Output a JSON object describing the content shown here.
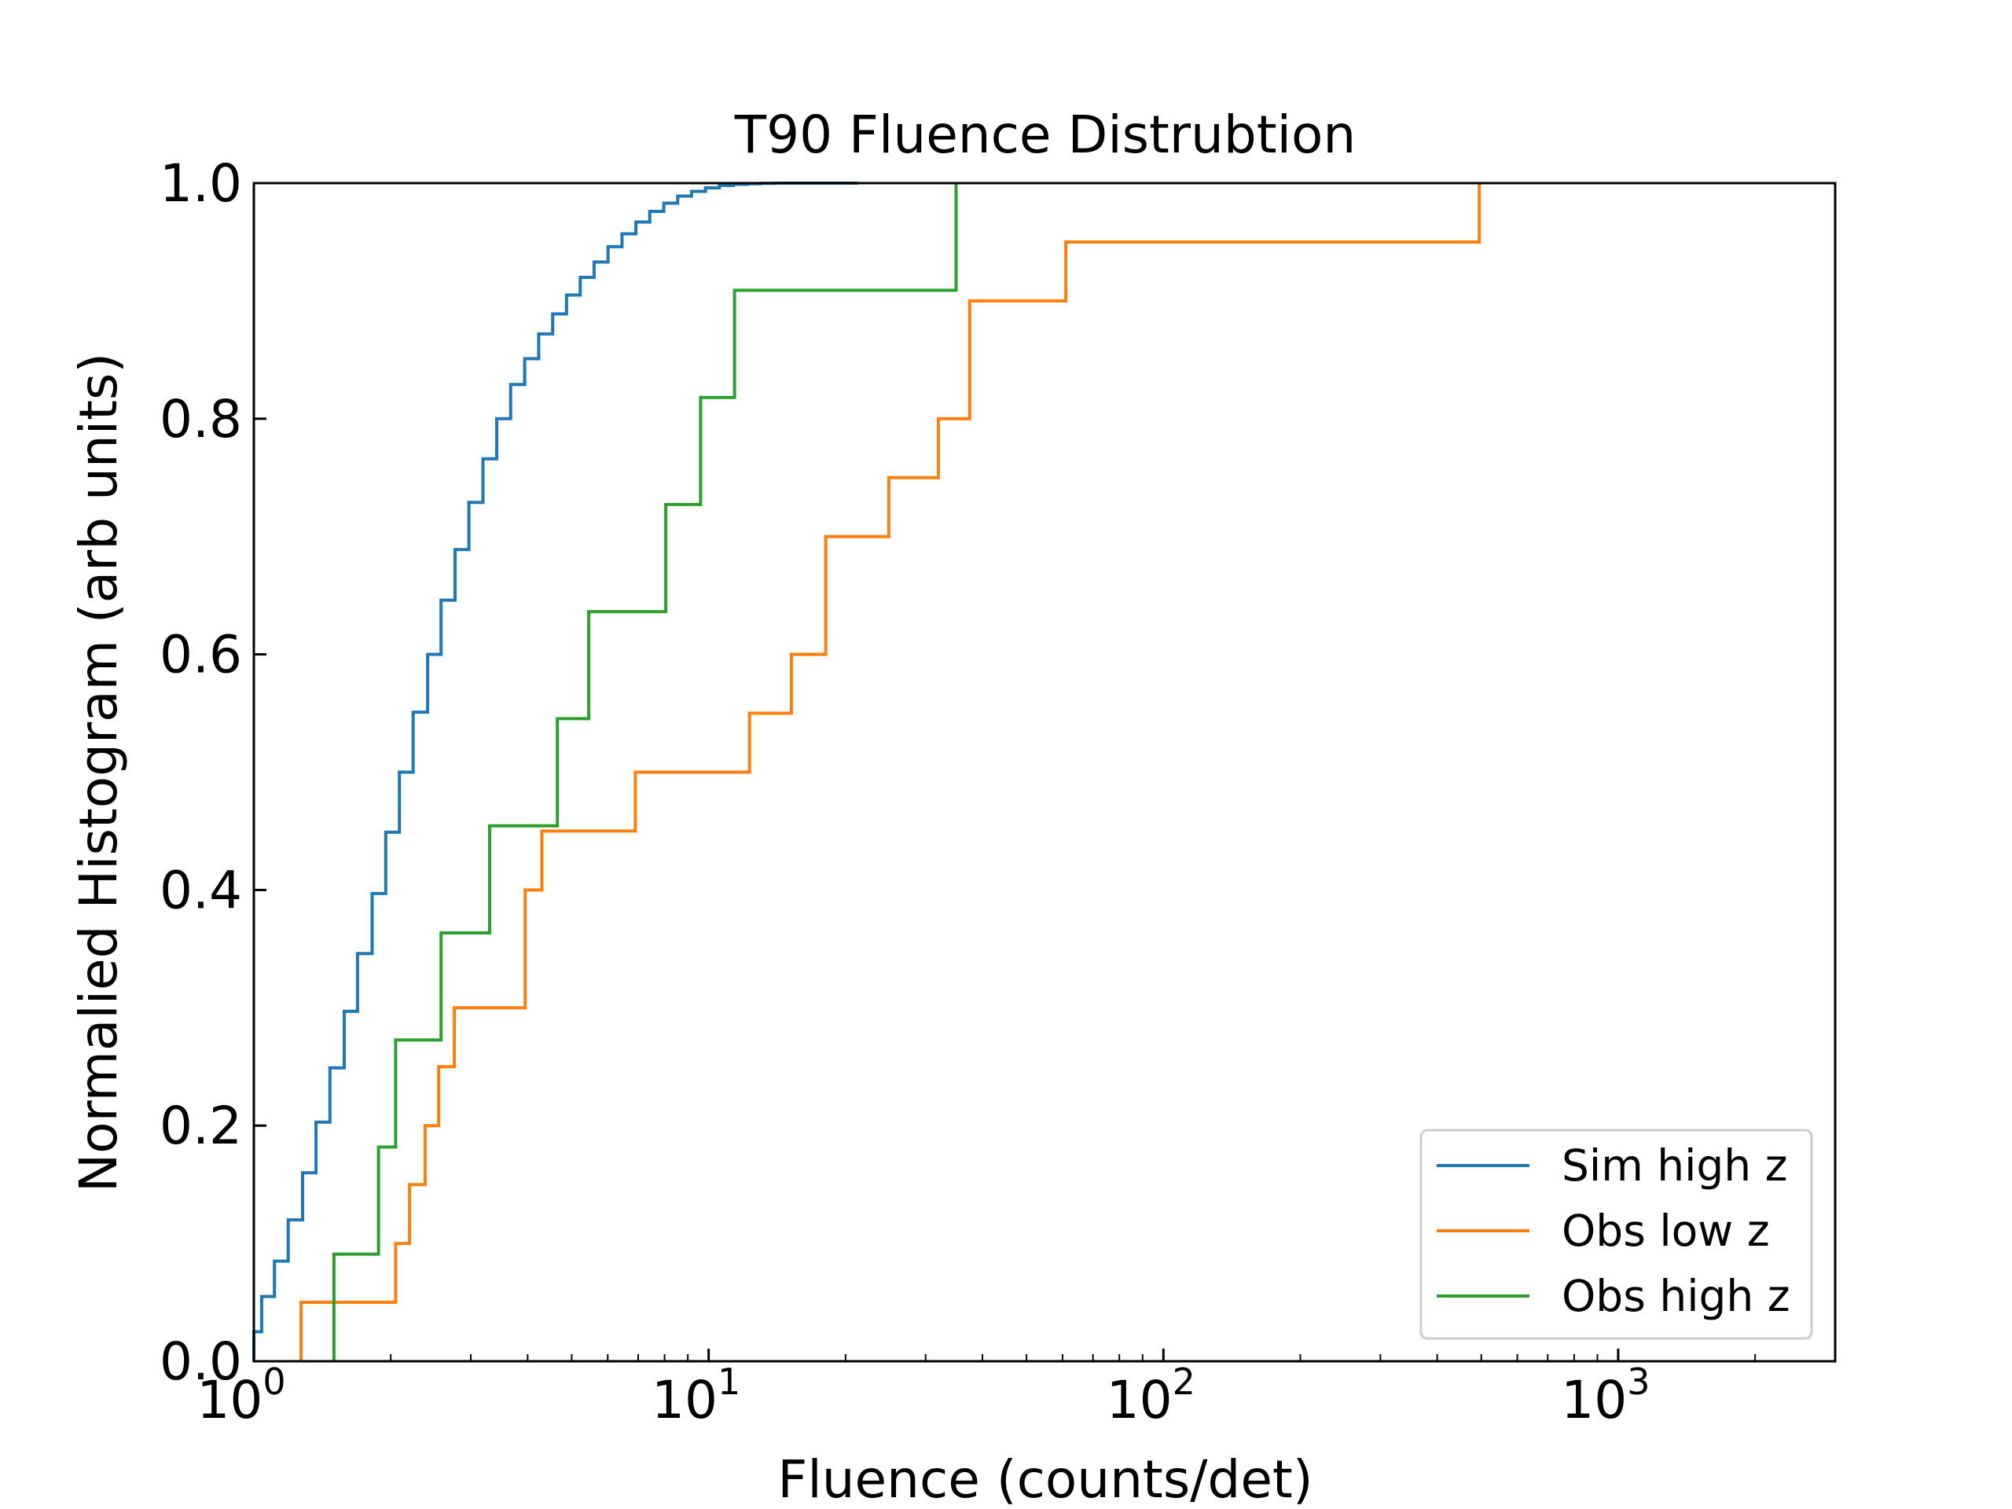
{
  "chart_data": {
    "type": "line",
    "title": "T90 Fluence Distrubtion",
    "xlabel": "Fluence (counts/det)",
    "ylabel": "Normalied Histogram (arb units)",
    "xscale": "log",
    "xlim": [
      1,
      3000
    ],
    "ylim": [
      0,
      1.0
    ],
    "x_ticks": [
      {
        "base": "10",
        "exp": "0",
        "value": 1
      },
      {
        "base": "10",
        "exp": "1",
        "value": 10
      },
      {
        "base": "10",
        "exp": "2",
        "value": 100
      },
      {
        "base": "10",
        "exp": "3",
        "value": 1000
      }
    ],
    "y_ticks": [
      "0.0",
      "0.2",
      "0.4",
      "0.6",
      "0.8",
      "1.0"
    ],
    "y_tick_values": [
      0,
      0.2,
      0.4,
      0.6,
      0.8,
      1.0
    ],
    "legend_position": "lower-right",
    "grid": false,
    "series": [
      {
        "name": "Sim high z",
        "color": "#1f77b4",
        "step_x": [
          1.0,
          1.04,
          1.11,
          1.19,
          1.28,
          1.37,
          1.47,
          1.58,
          1.69,
          1.82,
          1.95,
          2.09,
          2.24,
          2.41,
          2.58,
          2.77,
          2.97,
          3.19,
          3.42,
          3.67,
          3.94,
          4.23,
          4.54,
          4.87,
          5.22,
          5.6,
          6.01,
          6.45,
          6.92,
          7.42,
          7.97,
          8.55,
          9.17,
          9.84,
          10.56,
          11.33,
          12.16,
          13.05,
          14.0,
          15.0,
          16.1,
          17.3,
          18.5,
          19.9,
          21.3
        ],
        "step_y": [
          0.025,
          0.055,
          0.085,
          0.12,
          0.16,
          0.203,
          0.249,
          0.297,
          0.346,
          0.397,
          0.449,
          0.5,
          0.551,
          0.6,
          0.646,
          0.689,
          0.729,
          0.766,
          0.8,
          0.829,
          0.851,
          0.872,
          0.889,
          0.905,
          0.92,
          0.933,
          0.946,
          0.957,
          0.967,
          0.976,
          0.983,
          0.989,
          0.993,
          0.996,
          0.998,
          0.999,
          0.9995,
          0.9998,
          1.0,
          1.0,
          1.0,
          1.0,
          1.0,
          1.0,
          1.0
        ]
      },
      {
        "name": "Obs low z",
        "color": "#ff7f0e",
        "step_x": [
          1.27,
          2.05,
          2.2,
          2.38,
          2.55,
          2.76,
          3.95,
          4.3,
          6.9,
          12.3,
          15.2,
          18.1,
          24.9,
          32.0,
          37.5,
          61.0,
          495.0
        ],
        "step_y": [
          0.05,
          0.1,
          0.15,
          0.2,
          0.25,
          0.3,
          0.4,
          0.45,
          0.5,
          0.55,
          0.6,
          0.7,
          0.75,
          0.8,
          0.9,
          0.95,
          1.0
        ]
      },
      {
        "name": "Obs high z",
        "color": "#2ca02c",
        "step_x": [
          1.5,
          1.88,
          2.05,
          2.58,
          3.3,
          4.65,
          5.45,
          8.05,
          9.6,
          11.4,
          35.0
        ],
        "step_y": [
          0.0909,
          0.1818,
          0.2727,
          0.3636,
          0.4545,
          0.5454,
          0.6363,
          0.7272,
          0.8181,
          0.909,
          1.0
        ]
      }
    ]
  }
}
